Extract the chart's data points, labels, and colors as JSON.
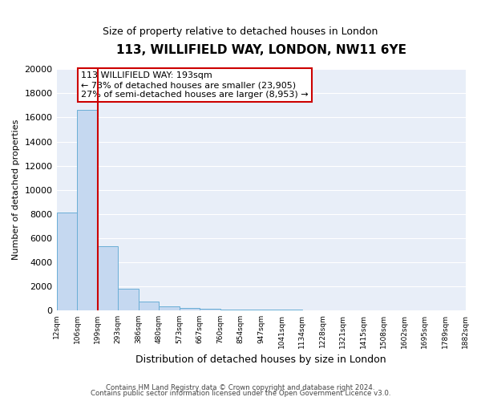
{
  "title": "113, WILLIFIELD WAY, LONDON, NW11 6YE",
  "subtitle": "Size of property relative to detached houses in London",
  "xlabel": "Distribution of detached houses by size in London",
  "ylabel": "Number of detached properties",
  "bar_values": [
    8100,
    16600,
    5300,
    1800,
    700,
    300,
    150,
    100,
    50,
    30,
    20,
    15,
    10,
    5,
    5,
    5,
    5,
    5,
    5,
    5
  ],
  "bin_labels": [
    "12sqm",
    "106sqm",
    "199sqm",
    "293sqm",
    "386sqm",
    "480sqm",
    "573sqm",
    "667sqm",
    "760sqm",
    "854sqm",
    "947sqm",
    "1041sqm",
    "1134sqm",
    "1228sqm",
    "1321sqm",
    "1415sqm",
    "1508sqm",
    "1602sqm",
    "1695sqm",
    "1789sqm",
    "1882sqm"
  ],
  "bar_color": "#c5d8f0",
  "bar_edge_color": "#6aaed6",
  "ylim": [
    0,
    20000
  ],
  "yticks": [
    0,
    2000,
    4000,
    6000,
    8000,
    10000,
    12000,
    14000,
    16000,
    18000,
    20000
  ],
  "red_line_x": 2,
  "annotation_title": "113 WILLIFIELD WAY: 193sqm",
  "annotation_line1": "← 73% of detached houses are smaller (23,905)",
  "annotation_line2": "27% of semi-detached houses are larger (8,953) →",
  "annotation_box_color": "#ffffff",
  "annotation_box_edge": "#cc0000",
  "red_line_color": "#cc0000",
  "footer1": "Contains HM Land Registry data © Crown copyright and database right 2024.",
  "footer2": "Contains public sector information licensed under the Open Government Licence v3.0.",
  "background_color": "#ffffff",
  "plot_bg_color": "#e8eef8"
}
